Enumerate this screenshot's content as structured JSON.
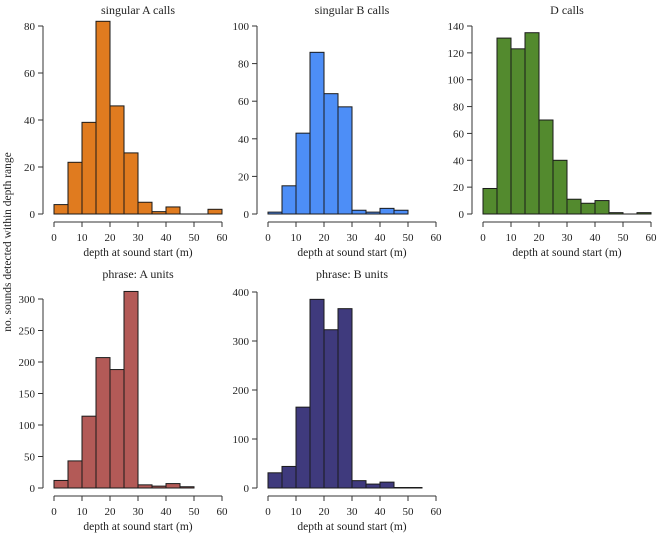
{
  "chart_data": {
    "type": "bar",
    "ylabel": "no. sounds detected within depth range",
    "panels": [
      {
        "title": "singular A calls",
        "xlabel": "depth at sound start (m)",
        "color": "#e07b1f",
        "bin_width": 5,
        "xlim": [
          0,
          60
        ],
        "xticks": [
          0,
          10,
          20,
          30,
          40,
          50,
          60
        ],
        "ylim": [
          0,
          80
        ],
        "yticks": [
          0,
          20,
          40,
          60,
          80
        ],
        "values": [
          4,
          22,
          39,
          82,
          46,
          26,
          5,
          1,
          3,
          0,
          0,
          2
        ]
      },
      {
        "title": "singular B calls",
        "xlabel": "depth at sound start (m)",
        "color": "#4d8ef7",
        "bin_width": 5,
        "xlim": [
          0,
          60
        ],
        "xticks": [
          0,
          10,
          20,
          30,
          40,
          50,
          60
        ],
        "ylim": [
          0,
          100
        ],
        "yticks": [
          0,
          20,
          40,
          60,
          80,
          100
        ],
        "values": [
          1,
          15,
          43,
          86,
          64,
          57,
          2,
          1,
          3,
          2
        ]
      },
      {
        "title": "D calls",
        "xlabel": "depth at sound start (m)",
        "color": "#538a2e",
        "bin_width": 5,
        "xlim": [
          0,
          60
        ],
        "xticks": [
          0,
          10,
          20,
          30,
          40,
          50,
          60
        ],
        "ylim": [
          0,
          140
        ],
        "yticks": [
          0,
          20,
          40,
          60,
          80,
          100,
          120,
          140
        ],
        "values": [
          19,
          131,
          123,
          135,
          70,
          40,
          11,
          8,
          10,
          1,
          0,
          1
        ]
      },
      {
        "title": "phrase: A units",
        "xlabel": "depth at sound start (m)",
        "color": "#b35a57",
        "bin_width": 5,
        "xlim": [
          0,
          60
        ],
        "xticks": [
          0,
          10,
          20,
          30,
          40,
          50,
          60
        ],
        "ylim": [
          0,
          300
        ],
        "yticks": [
          0,
          50,
          100,
          150,
          200,
          250,
          300
        ],
        "values": [
          12,
          43,
          114,
          207,
          188,
          312,
          5,
          3,
          7,
          2
        ]
      },
      {
        "title": "phrase: B units",
        "xlabel": "depth at sound start (m)",
        "color": "#3f3a7d",
        "bin_width": 5,
        "xlim": [
          0,
          60
        ],
        "xticks": [
          0,
          10,
          20,
          30,
          40,
          50,
          60
        ],
        "ylim": [
          0,
          400
        ],
        "yticks": [
          0,
          100,
          200,
          300,
          400
        ],
        "values": [
          31,
          44,
          165,
          385,
          323,
          366,
          15,
          8,
          12,
          1,
          1
        ]
      }
    ]
  }
}
